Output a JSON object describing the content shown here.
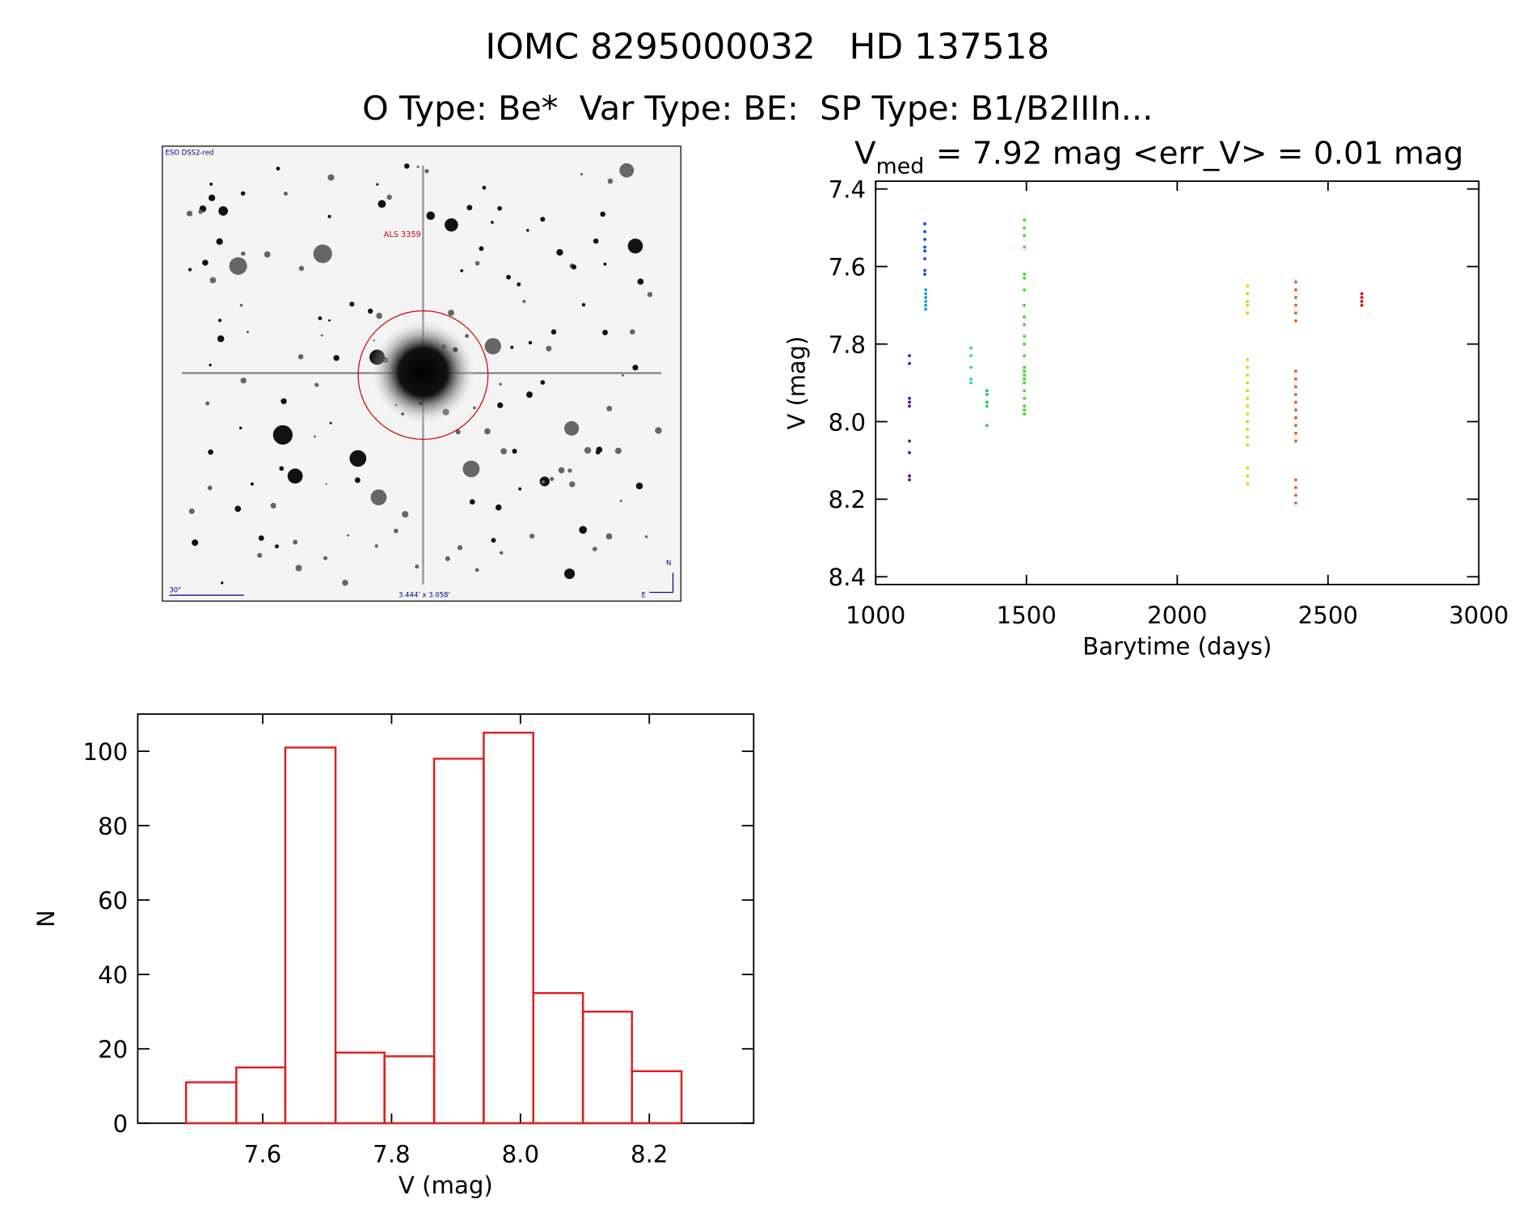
{
  "header": {
    "title": "IOMC 8295000032   HD 137518",
    "subtitle": "O Type: Be*  Var Type: BE:  SP Type: B1/B2IIIn..."
  },
  "image": {
    "survey": "ESO DSS2-red",
    "object": "ALS 3359",
    "scale": "30\"",
    "field": "3.444' x 3.058'",
    "north": "N",
    "east": "E"
  },
  "chart_data": [
    {
      "type": "scatter",
      "title_symbol": "V",
      "title_subscript": "med",
      "title": "= 7.92 mag <err_V> = 0.01 mag",
      "xlabel": "Barytime (days)",
      "ylabel": "V (mag)",
      "xlim": [
        1000,
        3000
      ],
      "ylim": [
        8.42,
        7.38
      ],
      "xticks": [
        1000,
        1500,
        2000,
        2500,
        3000
      ],
      "yticks": [
        7.4,
        7.6,
        7.8,
        {
          "value": 8,
          "label": "8.0"
        },
        8.2,
        8.4
      ],
      "series": [
        {
          "color": "#5a1a8c",
          "x": [
            1112,
            1112,
            1112,
            1112,
            1112,
            1112,
            1112,
            1112,
            1112
          ],
          "values": [
            7.83,
            7.85,
            7.94,
            7.95,
            7.96,
            8.05,
            8.08,
            8.14,
            8.15
          ]
        },
        {
          "color": "#1a4fe0",
          "x": [
            1163,
            1163,
            1163,
            1163,
            1163,
            1163,
            1163,
            1163
          ],
          "values": [
            7.49,
            7.51,
            7.53,
            7.55,
            7.56,
            7.58,
            7.61,
            7.62
          ]
        },
        {
          "color": "#1aa0e8",
          "x": [
            1166,
            1166,
            1166,
            1166,
            1166,
            1166
          ],
          "values": [
            7.66,
            7.67,
            7.68,
            7.69,
            7.7,
            7.71
          ]
        },
        {
          "color": "#2ad8d0",
          "x": [
            1316,
            1316,
            1316,
            1316,
            1316
          ],
          "values": [
            7.81,
            7.83,
            7.86,
            7.89,
            7.9
          ]
        },
        {
          "color": "#2ac870",
          "x": [
            1369,
            1369,
            1369,
            1369,
            1369
          ],
          "values": [
            7.92,
            7.93,
            7.95,
            7.96,
            8.01
          ]
        },
        {
          "color": "#3ee020",
          "x": [
            1493,
            1493,
            1493,
            1493,
            1493,
            1493,
            1493,
            1493,
            1493,
            1493,
            1493,
            1493,
            1493,
            1493,
            1493,
            1493,
            1493,
            1493,
            1493,
            1493,
            1493,
            1493,
            1493
          ],
          "values": [
            7.48,
            7.5,
            7.52,
            7.55,
            7.62,
            7.63,
            7.66,
            7.7,
            7.73,
            7.75,
            7.78,
            7.8,
            7.83,
            7.86,
            7.87,
            7.88,
            7.89,
            7.9,
            7.92,
            7.94,
            7.96,
            7.97,
            7.98
          ]
        },
        {
          "color": "#f5c800",
          "x": [
            2233,
            2233,
            2233,
            2233,
            2233,
            2233,
            2233,
            2233,
            2233,
            2233,
            2233,
            2233,
            2233,
            2233,
            2233,
            2233,
            2233,
            2233,
            2233,
            2233
          ],
          "values": [
            7.65,
            7.67,
            7.69,
            7.7,
            7.72,
            7.84,
            7.86,
            7.88,
            7.9,
            7.92,
            7.94,
            7.96,
            7.98,
            8.0,
            8.02,
            8.04,
            8.06,
            8.12,
            8.14,
            8.16
          ]
        },
        {
          "color": "#f06010",
          "x": [
            2393,
            2393,
            2393,
            2393,
            2393,
            2393,
            2393,
            2393,
            2393,
            2393,
            2393,
            2393,
            2393,
            2393,
            2393,
            2393,
            2393,
            2393,
            2393,
            2393
          ],
          "values": [
            7.64,
            7.66,
            7.68,
            7.7,
            7.72,
            7.74,
            7.87,
            7.89,
            7.91,
            7.93,
            7.95,
            7.97,
            7.99,
            8.01,
            8.03,
            8.05,
            8.15,
            8.17,
            8.19,
            8.21
          ]
        },
        {
          "color": "#e01818",
          "x": [
            2612,
            2612,
            2612,
            2612
          ],
          "values": [
            7.67,
            7.68,
            7.69,
            7.7
          ]
        }
      ]
    },
    {
      "type": "histogram",
      "xlabel": "V (mag)",
      "ylabel": "N",
      "color": "#e41a1a",
      "bins": [
        7.481,
        7.559,
        7.635,
        7.713,
        7.789,
        7.866,
        7.943,
        8.02,
        8.097,
        8.173,
        8.25
      ],
      "values": [
        11,
        15,
        101,
        19,
        18,
        98,
        105,
        35,
        30,
        14
      ],
      "xlim": [
        7.406,
        8.362
      ],
      "ylim": [
        0,
        110
      ],
      "xticks": [
        7.6,
        7.8,
        {
          "value": 8,
          "label": "8.0"
        },
        8.2
      ],
      "yticks": [
        0,
        20,
        40,
        60,
        80,
        100
      ]
    }
  ]
}
